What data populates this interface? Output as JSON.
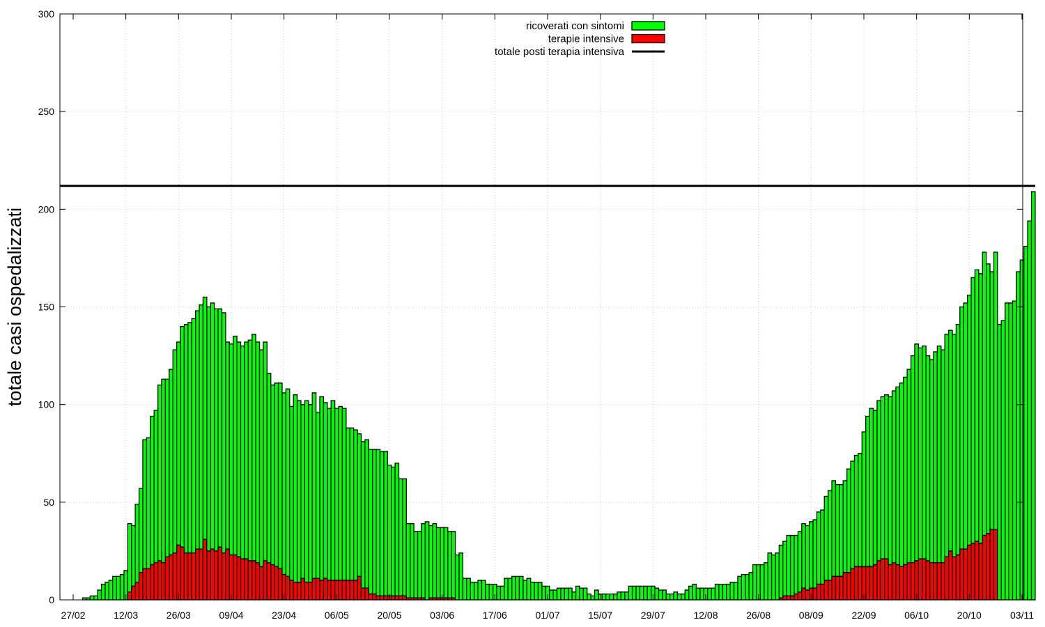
{
  "chart_data": {
    "type": "bar",
    "stacked": true,
    "ylabel": "totale casi ospedalizzati",
    "xlabel": "",
    "ylim": [
      0,
      300
    ],
    "yticks": [
      0,
      50,
      100,
      150,
      200,
      250,
      300
    ],
    "x_start": "01/03",
    "xticks": [
      "27/02",
      "12/03",
      "26/03",
      "09/04",
      "23/04",
      "06/05",
      "20/05",
      "03/06",
      "17/06",
      "01/07",
      "15/07",
      "29/07",
      "12/08",
      "26/08",
      "08/09",
      "22/09",
      "06/10",
      "20/10",
      "03/11"
    ],
    "grid": true,
    "legend_position": "top-center",
    "series": [
      {
        "name": "ricoverati con sintomi",
        "color": "#00ff00",
        "values": [
          1,
          1,
          2,
          2,
          5,
          8,
          9,
          10,
          12,
          12,
          13,
          15,
          35,
          31,
          40,
          43,
          66,
          67,
          76,
          78,
          90,
          94,
          91,
          95,
          104,
          104,
          113,
          117,
          118,
          120,
          122,
          125,
          124,
          125,
          126,
          124,
          122,
          123,
          106,
          108,
          112,
          110,
          109,
          111,
          113,
          116,
          113,
          111,
          112,
          97,
          92,
          94,
          95,
          93,
          96,
          89,
          96,
          93,
          89,
          93,
          91,
          95,
          85,
          94,
          90,
          88,
          92,
          88,
          89,
          88,
          78,
          78,
          77,
          73,
          75,
          76,
          74,
          74,
          75,
          74,
          74,
          67,
          66,
          68,
          60,
          60,
          38,
          38,
          34,
          34,
          38,
          40,
          37,
          38,
          36,
          36,
          36,
          34,
          34,
          23,
          24,
          11,
          11,
          9,
          9,
          10,
          10,
          8,
          8,
          8,
          7,
          7,
          11,
          11,
          12,
          12,
          12,
          10,
          11,
          9,
          9,
          9,
          7,
          7,
          5,
          5,
          6,
          6,
          6,
          6,
          4,
          7,
          6,
          6,
          3,
          2,
          5,
          3,
          3,
          3,
          3,
          3,
          4,
          4,
          4,
          7,
          7,
          7,
          7,
          7,
          7,
          7,
          6,
          5,
          5,
          3,
          3,
          4,
          3,
          3,
          5,
          7,
          8,
          6,
          6,
          6,
          6,
          6,
          8,
          8,
          8,
          8,
          9,
          9,
          12,
          13,
          13,
          14,
          18,
          18,
          18,
          19,
          24,
          23,
          24,
          27,
          28,
          31,
          31,
          30,
          31,
          33,
          33,
          34,
          35,
          37,
          38,
          43,
          46,
          49,
          47,
          47,
          47,
          53,
          55,
          57,
          58,
          69,
          77,
          81,
          79,
          82,
          83,
          84,
          86,
          88,
          91,
          94,
          96,
          99,
          106,
          111,
          108,
          109,
          105,
          104,
          108,
          111,
          109,
          114,
          113,
          114,
          118,
          124,
          126,
          128,
          136,
          139,
          138,
          145,
          138,
          132,
          142,
          141,
          143,
          152,
          152,
          153,
          168,
          174,
          181,
          194,
          209
        ],
        "_note": ""
      },
      {
        "name": "terapie intensive",
        "color": "#ff0000",
        "values": [
          0,
          0,
          0,
          0,
          0,
          0,
          0,
          0,
          0,
          0,
          0,
          0,
          4,
          7,
          9,
          14,
          16,
          16,
          18,
          19,
          20,
          19,
          22,
          23,
          24,
          28,
          27,
          24,
          24,
          24,
          26,
          26,
          31,
          25,
          26,
          25,
          27,
          24,
          26,
          23,
          23,
          22,
          21,
          21,
          20,
          20,
          19,
          17,
          20,
          19,
          18,
          17,
          16,
          13,
          12,
          10,
          9,
          9,
          11,
          9,
          9,
          11,
          11,
          10,
          11,
          10,
          10,
          10,
          10,
          10,
          10,
          10,
          10,
          12,
          6,
          6,
          3,
          3,
          2,
          2,
          2,
          2,
          2,
          2,
          2,
          2,
          1,
          1,
          1,
          1,
          1,
          0,
          1,
          1,
          1,
          1,
          1,
          1,
          1,
          0,
          0,
          0,
          0,
          0,
          0,
          0,
          0,
          0,
          0,
          0,
          0,
          0,
          0,
          0,
          0,
          0,
          0,
          0,
          0,
          0,
          0,
          0,
          0,
          0,
          0,
          0,
          0,
          0,
          0,
          0,
          0,
          0,
          0,
          0,
          0,
          0,
          0,
          0,
          0,
          0,
          0,
          0,
          0,
          0,
          0,
          0,
          0,
          0,
          0,
          0,
          0,
          0,
          0,
          0,
          0,
          0,
          0,
          0,
          0,
          0,
          0,
          0,
          0,
          0,
          0,
          0,
          0,
          0,
          0,
          0,
          0,
          0,
          0,
          0,
          0,
          0,
          0,
          0,
          0,
          0,
          0,
          0,
          0,
          0,
          0,
          1,
          2,
          2,
          2,
          3,
          4,
          6,
          5,
          6,
          6,
          8,
          8,
          10,
          10,
          12,
          12,
          12,
          14,
          14,
          16,
          17,
          17,
          17,
          17,
          17,
          18,
          20,
          21,
          21,
          18,
          19,
          18,
          17,
          18,
          19,
          19,
          20,
          21,
          21,
          20,
          19,
          19,
          19,
          19,
          22,
          25,
          22,
          23,
          26,
          26,
          28,
          29,
          30,
          29,
          33,
          34,
          36,
          36
        ]
      }
    ],
    "reference_line": {
      "name": "totale posti terapia intensiva",
      "value": 212,
      "color": "#000000"
    }
  }
}
